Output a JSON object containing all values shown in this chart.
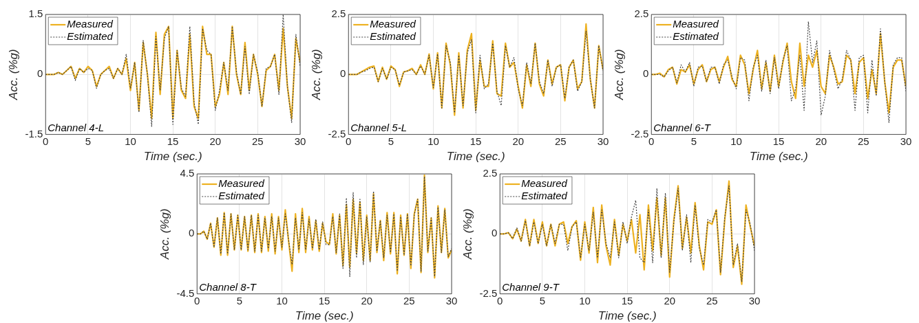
{
  "chart_data": [
    {
      "type": "line",
      "xlabel": "Time (sec.)",
      "ylabel": "Acc. (%g)",
      "xlim": [
        0,
        30
      ],
      "xticks": [
        0,
        5,
        10,
        15,
        20,
        25,
        30
      ],
      "ylim": [
        -1.5,
        1.5
      ],
      "yticks": [
        -1.5,
        0,
        1.5
      ],
      "grid": true,
      "legend": "top left",
      "annotations": [
        "Channel 4-L"
      ],
      "x": [
        0,
        0.5,
        1,
        1.5,
        2,
        2.5,
        3,
        3.5,
        4,
        4.5,
        5,
        5.5,
        6,
        6.5,
        7,
        7.5,
        8,
        8.5,
        9,
        9.5,
        10,
        10.5,
        11,
        11.5,
        12,
        12.5,
        13,
        13.5,
        14,
        14.5,
        15,
        15.5,
        16,
        16.5,
        17,
        17.5,
        18,
        18.5,
        19,
        19.5,
        20,
        20.5,
        21,
        21.5,
        22,
        22.5,
        23,
        23.5,
        24,
        24.5,
        25,
        25.5,
        26,
        26.5,
        27,
        27.5,
        28,
        28.5,
        29,
        29.5,
        30
      ],
      "series": [
        {
          "name": "Measured",
          "color": "#edb120",
          "line_style": "solid",
          "values": [
            0,
            0,
            0,
            0.05,
            0,
            0.1,
            0.2,
            -0.1,
            0.15,
            0.05,
            0.2,
            0.1,
            -0.3,
            0,
            0.1,
            0.2,
            -0.1,
            0.15,
            0,
            0.4,
            -0.4,
            0.3,
            -0.9,
            0.8,
            0,
            -1.1,
            1.05,
            -0.5,
            1.0,
            1.2,
            -1.1,
            0.6,
            -0.4,
            -0.6,
            1.0,
            -0.8,
            -1.1,
            1.2,
            0.5,
            0.5,
            -0.8,
            -0.5,
            0.3,
            -0.5,
            1.2,
            0,
            -0.5,
            0.8,
            -0.4,
            0.5,
            0,
            -0.8,
            0.1,
            0.2,
            0.5,
            -0.4,
            1.15,
            -0.3,
            -1.1,
            0.9,
            0.3
          ]
        },
        {
          "name": "Estimated",
          "color": "#404040",
          "line_style": "dotted",
          "values": [
            0,
            0,
            0,
            0.05,
            0,
            0.1,
            0.2,
            -0.15,
            0.15,
            0.05,
            0.15,
            0.1,
            -0.35,
            0,
            0.1,
            0.15,
            -0.1,
            0.15,
            0,
            0.5,
            -0.35,
            0.3,
            -0.95,
            0.85,
            0,
            -1.3,
            0.95,
            -0.4,
            0.9,
            1.2,
            -1.25,
            0.6,
            -0.35,
            -0.55,
            1.2,
            -0.7,
            -1.25,
            1.15,
            0.6,
            0.5,
            -0.9,
            -0.4,
            0.3,
            -0.4,
            1.2,
            0.05,
            -0.5,
            0.7,
            -0.5,
            0.5,
            0.05,
            -0.8,
            0.15,
            0.2,
            0.5,
            -0.5,
            1.5,
            -0.3,
            -1.2,
            1.0,
            0.2
          ]
        }
      ]
    },
    {
      "type": "line",
      "xlabel": "Time (sec.)",
      "ylabel": "Acc. (%g)",
      "xlim": [
        0,
        30
      ],
      "xticks": [
        0,
        5,
        10,
        15,
        20,
        25,
        30
      ],
      "ylim": [
        -2.5,
        2.5
      ],
      "yticks": [
        -2.5,
        0,
        2.5
      ],
      "grid": true,
      "legend": "top left",
      "annotations": [
        "Channel 5-L"
      ],
      "x": [
        0,
        0.5,
        1,
        1.5,
        2,
        2.5,
        3,
        3.5,
        4,
        4.5,
        5,
        5.5,
        6,
        6.5,
        7,
        7.5,
        8,
        8.5,
        9,
        9.5,
        10,
        10.5,
        11,
        11.5,
        12,
        12.5,
        13,
        13.5,
        14,
        14.5,
        15,
        15.5,
        16,
        16.5,
        17,
        17.5,
        18,
        18.5,
        19,
        19.5,
        20,
        20.5,
        21,
        21.5,
        22,
        22.5,
        23,
        23.5,
        24,
        24.5,
        25,
        25.5,
        26,
        26.5,
        27,
        27.5,
        28,
        28.5,
        29,
        29.5,
        30
      ],
      "series": [
        {
          "name": "Measured",
          "color": "#edb120",
          "line_style": "solid",
          "values": [
            0,
            0,
            0,
            0.1,
            0.2,
            0.3,
            0.35,
            -0.3,
            0.3,
            -0.2,
            0.35,
            0.2,
            -0.5,
            0.1,
            0.15,
            0.25,
            0,
            0.4,
            0,
            0.85,
            -0.6,
            0.9,
            -1.4,
            1.3,
            0.4,
            -1.7,
            0.9,
            -1.4,
            1.0,
            1.7,
            -1.5,
            0.6,
            -0.5,
            -0.5,
            1.4,
            -0.8,
            -0.9,
            1.3,
            0.3,
            0.5,
            -0.5,
            -1.4,
            0.4,
            -0.5,
            1.3,
            -0.4,
            -0.9,
            0.6,
            -0.4,
            0.3,
            0.4,
            -1.1,
            0.3,
            0.6,
            -0.6,
            -0.3,
            2.1,
            -0.2,
            -1.4,
            1.2,
            0.2
          ]
        },
        {
          "name": "Estimated",
          "color": "#404040",
          "line_style": "dotted",
          "values": [
            0,
            0,
            0,
            0.1,
            0.15,
            0.25,
            0.3,
            -0.3,
            0.25,
            -0.2,
            0.3,
            0.2,
            -0.45,
            0.1,
            0.15,
            0.2,
            0,
            0.35,
            0,
            0.8,
            -0.55,
            0.85,
            -1.4,
            1.2,
            0.5,
            -1.6,
            0.8,
            -1.3,
            0.9,
            1.45,
            -1.6,
            0.8,
            -0.6,
            -0.4,
            1.3,
            -0.7,
            -1.3,
            1.2,
            0.3,
            0.7,
            -0.6,
            -1.3,
            0.5,
            -0.4,
            1.3,
            -0.3,
            -0.8,
            0.6,
            -0.5,
            0.3,
            0.4,
            -1.0,
            0.3,
            0.6,
            -0.7,
            -0.3,
            1.8,
            -0.2,
            -1.4,
            1.2,
            0.15
          ]
        }
      ]
    },
    {
      "type": "line",
      "xlabel": "Time (sec.)",
      "ylabel": "Acc. (%g)",
      "xlim": [
        0,
        30
      ],
      "xticks": [
        0,
        5,
        10,
        15,
        20,
        25,
        30
      ],
      "ylim": [
        -2.5,
        2.5
      ],
      "yticks": [
        -2.5,
        0,
        2.5
      ],
      "grid": true,
      "legend": "top left",
      "annotations": [
        "Channel 6-T"
      ],
      "x": [
        0,
        0.5,
        1,
        1.5,
        2,
        2.5,
        3,
        3.5,
        4,
        4.5,
        5,
        5.5,
        6,
        6.5,
        7,
        7.5,
        8,
        8.5,
        9,
        9.5,
        10,
        10.5,
        11,
        11.5,
        12,
        12.5,
        13,
        13.5,
        14,
        14.5,
        15,
        15.5,
        16,
        16.5,
        17,
        17.5,
        18,
        18.5,
        19,
        19.5,
        20,
        20.5,
        21,
        21.5,
        22,
        22.5,
        23,
        23.5,
        24,
        24.5,
        25,
        25.5,
        26,
        26.5,
        27,
        27.5,
        28,
        28.5,
        29,
        29.5,
        30
      ],
      "series": [
        {
          "name": "Measured",
          "color": "#edb120",
          "line_style": "solid",
          "values": [
            0,
            0,
            0.05,
            -0.1,
            0.2,
            0.3,
            -0.4,
            0.2,
            0.1,
            0.4,
            -0.4,
            0.2,
            0.4,
            -0.3,
            0.2,
            0.3,
            -0.3,
            0.3,
            0.75,
            -0.2,
            -0.5,
            0.8,
            0.4,
            -0.8,
            0.2,
            1.0,
            -0.6,
            0.5,
            -0.7,
            0.8,
            -0.5,
            0.5,
            1.3,
            -0.3,
            -1.0,
            1.3,
            -0.5,
            0.8,
            0.3,
            1.0,
            -0.5,
            -0.8,
            0.8,
            0.3,
            -0.4,
            -0.3,
            0.8,
            0.6,
            -0.8,
            0.5,
            0.7,
            -1.0,
            0.2,
            -0.8,
            1.7,
            -0.3,
            -1.6,
            0.3,
            0.6,
            0.6,
            -0.5
          ]
        },
        {
          "name": "Estimated",
          "color": "#404040",
          "line_style": "dotted",
          "values": [
            0,
            0,
            0,
            -0.1,
            0.15,
            0.3,
            -0.35,
            0.4,
            0.1,
            0.5,
            -0.5,
            0.3,
            0.35,
            -0.3,
            0.3,
            0.3,
            -0.4,
            0.4,
            0.6,
            -0.1,
            -0.6,
            0.7,
            0.6,
            -1.1,
            0.3,
            0.8,
            -0.7,
            0.6,
            -0.8,
            0.7,
            -0.6,
            0.6,
            1.2,
            -1.1,
            -0.6,
            0.8,
            -1.5,
            2.2,
            0.5,
            1.4,
            -1.7,
            -0.9,
            1.0,
            0.2,
            -0.6,
            -0.2,
            1.0,
            0.6,
            -1.5,
            0.7,
            0.8,
            -1.6,
            0.6,
            -0.9,
            1.9,
            -0.3,
            -2.0,
            0.4,
            0.7,
            0.7,
            -0.7
          ]
        }
      ]
    },
    {
      "type": "line",
      "xlabel": "Time (sec.)",
      "ylabel": "Acc. (%g)",
      "xlim": [
        0,
        30
      ],
      "xticks": [
        0,
        5,
        10,
        15,
        20,
        25,
        30
      ],
      "ylim": [
        -4.5,
        4.5
      ],
      "yticks": [
        -4.5,
        0,
        4.5
      ],
      "grid": true,
      "legend": "top left",
      "annotations": [
        "Channel 8-T"
      ],
      "x": [
        0,
        0.4,
        0.8,
        1.2,
        1.6,
        2,
        2.4,
        2.8,
        3.2,
        3.6,
        4,
        4.4,
        4.8,
        5.2,
        5.6,
        6,
        6.4,
        6.8,
        7.2,
        7.6,
        8,
        8.4,
        8.8,
        9.2,
        9.6,
        10,
        10.4,
        10.8,
        11.2,
        11.6,
        12,
        12.4,
        12.8,
        13.2,
        13.6,
        14,
        14.4,
        14.8,
        15.2,
        15.6,
        16,
        16.4,
        16.8,
        17.2,
        17.6,
        18,
        18.4,
        18.8,
        19.2,
        19.6,
        20,
        20.4,
        20.8,
        21.2,
        21.6,
        22,
        22.4,
        22.8,
        23.2,
        23.6,
        24,
        24.4,
        24.8,
        25.2,
        25.6,
        26,
        26.4,
        26.8,
        27.2,
        27.6,
        28,
        28.4,
        28.8,
        29.2,
        29.6,
        30
      ],
      "series": [
        {
          "name": "Measured",
          "color": "#edb120",
          "line_style": "solid",
          "values": [
            0,
            0,
            0.2,
            -0.4,
            0.8,
            -1.0,
            1.2,
            -1.6,
            1.6,
            -1.6,
            1.5,
            -1.2,
            1.4,
            -1.2,
            1.3,
            -1.3,
            1.4,
            -1.4,
            1.5,
            -1.4,
            1.3,
            -1.3,
            1.5,
            -1.5,
            1.3,
            -1.2,
            1.8,
            -0.6,
            -2.8,
            1.5,
            -1.4,
            1.9,
            -1.4,
            1.3,
            -1.2,
            1.0,
            -1.3,
            0.8,
            -0.6,
            -0.8,
            1.5,
            -1.5,
            1.4,
            -2.4,
            2.2,
            -2.5,
            2.6,
            -1.5,
            2.4,
            -2.0,
            1.4,
            -2.0,
            3.0,
            -1.4,
            1.0,
            -2.0,
            1.6,
            -1.5,
            1.6,
            -3.0,
            1.4,
            -1.6,
            1.5,
            -2.6,
            1.5,
            2.6,
            -2.9,
            4.4,
            -1.4,
            1.2,
            -3.3,
            2.1,
            -1.4,
            1.9,
            -1.8,
            -1.2
          ]
        },
        {
          "name": "Estimated",
          "color": "#404040",
          "line_style": "dotted",
          "values": [
            0,
            0,
            0.2,
            -0.4,
            0.8,
            -1.0,
            1.2,
            -1.5,
            1.6,
            -1.5,
            1.5,
            -1.2,
            1.4,
            -1.2,
            1.3,
            -1.2,
            1.4,
            -1.3,
            1.4,
            -1.3,
            1.2,
            -1.1,
            1.3,
            -1.3,
            1.2,
            -1.0,
            1.5,
            -0.5,
            -2.3,
            1.2,
            -1.2,
            1.6,
            -1.2,
            1.1,
            -1.1,
            1.1,
            -1.2,
            0.9,
            -0.8,
            -0.8,
            1.3,
            -1.4,
            1.5,
            -2.6,
            2.7,
            -3.2,
            3.1,
            -1.8,
            2.6,
            -2.3,
            1.3,
            -2.1,
            3.2,
            -1.3,
            1.0,
            -1.8,
            1.4,
            -1.4,
            1.5,
            -2.8,
            1.3,
            -1.6,
            1.5,
            -2.4,
            1.4,
            2.6,
            -2.8,
            4.3,
            -1.3,
            1.2,
            -3.2,
            2.0,
            -1.4,
            1.8,
            -1.7,
            -1.1
          ]
        }
      ]
    },
    {
      "type": "line",
      "xlabel": "Time (sec.)",
      "ylabel": "Acc. (%g)",
      "xlim": [
        0,
        30
      ],
      "xticks": [
        0,
        5,
        10,
        15,
        20,
        25,
        30
      ],
      "ylim": [
        -2.5,
        2.5
      ],
      "yticks": [
        -2.5,
        0,
        2.5
      ],
      "grid": true,
      "legend": "top left",
      "annotations": [
        "Channel 9-T"
      ],
      "x": [
        0,
        0.5,
        1,
        1.5,
        2,
        2.5,
        3,
        3.5,
        4,
        4.5,
        5,
        5.5,
        6,
        6.5,
        7,
        7.5,
        8,
        8.5,
        9,
        9.5,
        10,
        10.5,
        11,
        11.5,
        12,
        12.5,
        13,
        13.5,
        14,
        14.5,
        15,
        15.5,
        16,
        16.5,
        17,
        17.5,
        18,
        18.5,
        19,
        19.5,
        20,
        20.5,
        21,
        21.5,
        22,
        22.5,
        23,
        23.5,
        24,
        24.5,
        25,
        25.5,
        26,
        26.5,
        27,
        27.5,
        28,
        28.5,
        29,
        29.5,
        30
      ],
      "series": [
        {
          "name": "Measured",
          "color": "#edb120",
          "line_style": "solid",
          "values": [
            0,
            0,
            0.05,
            -0.2,
            0.2,
            -0.3,
            0.6,
            -0.5,
            0.6,
            -0.4,
            0.5,
            -0.5,
            0.4,
            -0.5,
            0.4,
            0.5,
            -0.4,
            0.3,
            0.55,
            -1.1,
            0.5,
            -0.8,
            1.1,
            -1.2,
            1.2,
            -0.5,
            -1.3,
            0.6,
            -0.9,
            0.4,
            -0.3,
            0.6,
            -0.8,
            0.8,
            -1.5,
            1.2,
            -0.7,
            1.5,
            -0.9,
            1.5,
            -1.8,
            0.6,
            2.0,
            -0.6,
            0.7,
            -0.8,
            1.3,
            -0.5,
            -1.5,
            0.5,
            0.4,
            1.0,
            -1.7,
            0.6,
            2.2,
            -1.4,
            -0.5,
            -2.1,
            1.2,
            0.3,
            -0.5
          ]
        },
        {
          "name": "Estimated",
          "color": "#404040",
          "line_style": "dotted",
          "values": [
            0,
            0,
            0.05,
            -0.2,
            0.25,
            -0.3,
            0.55,
            -0.5,
            0.5,
            -0.4,
            0.4,
            -0.5,
            0.4,
            -0.4,
            0.4,
            0.4,
            -0.7,
            0.3,
            0.5,
            -1.0,
            0.4,
            -0.7,
            0.9,
            -1.0,
            1.0,
            -0.4,
            -1.0,
            0.5,
            -1.0,
            0.5,
            -0.4,
            0.7,
            1.4,
            -1.0,
            -1.2,
            1.0,
            -1.2,
            1.9,
            -1.0,
            1.7,
            -1.6,
            0.5,
            1.9,
            -0.7,
            0.8,
            -1.2,
            1.2,
            -0.6,
            -1.3,
            0.6,
            0.5,
            1.0,
            -1.6,
            0.7,
            2.0,
            -1.3,
            -0.4,
            -2.0,
            1.0,
            0.4,
            -0.7
          ]
        }
      ]
    }
  ]
}
